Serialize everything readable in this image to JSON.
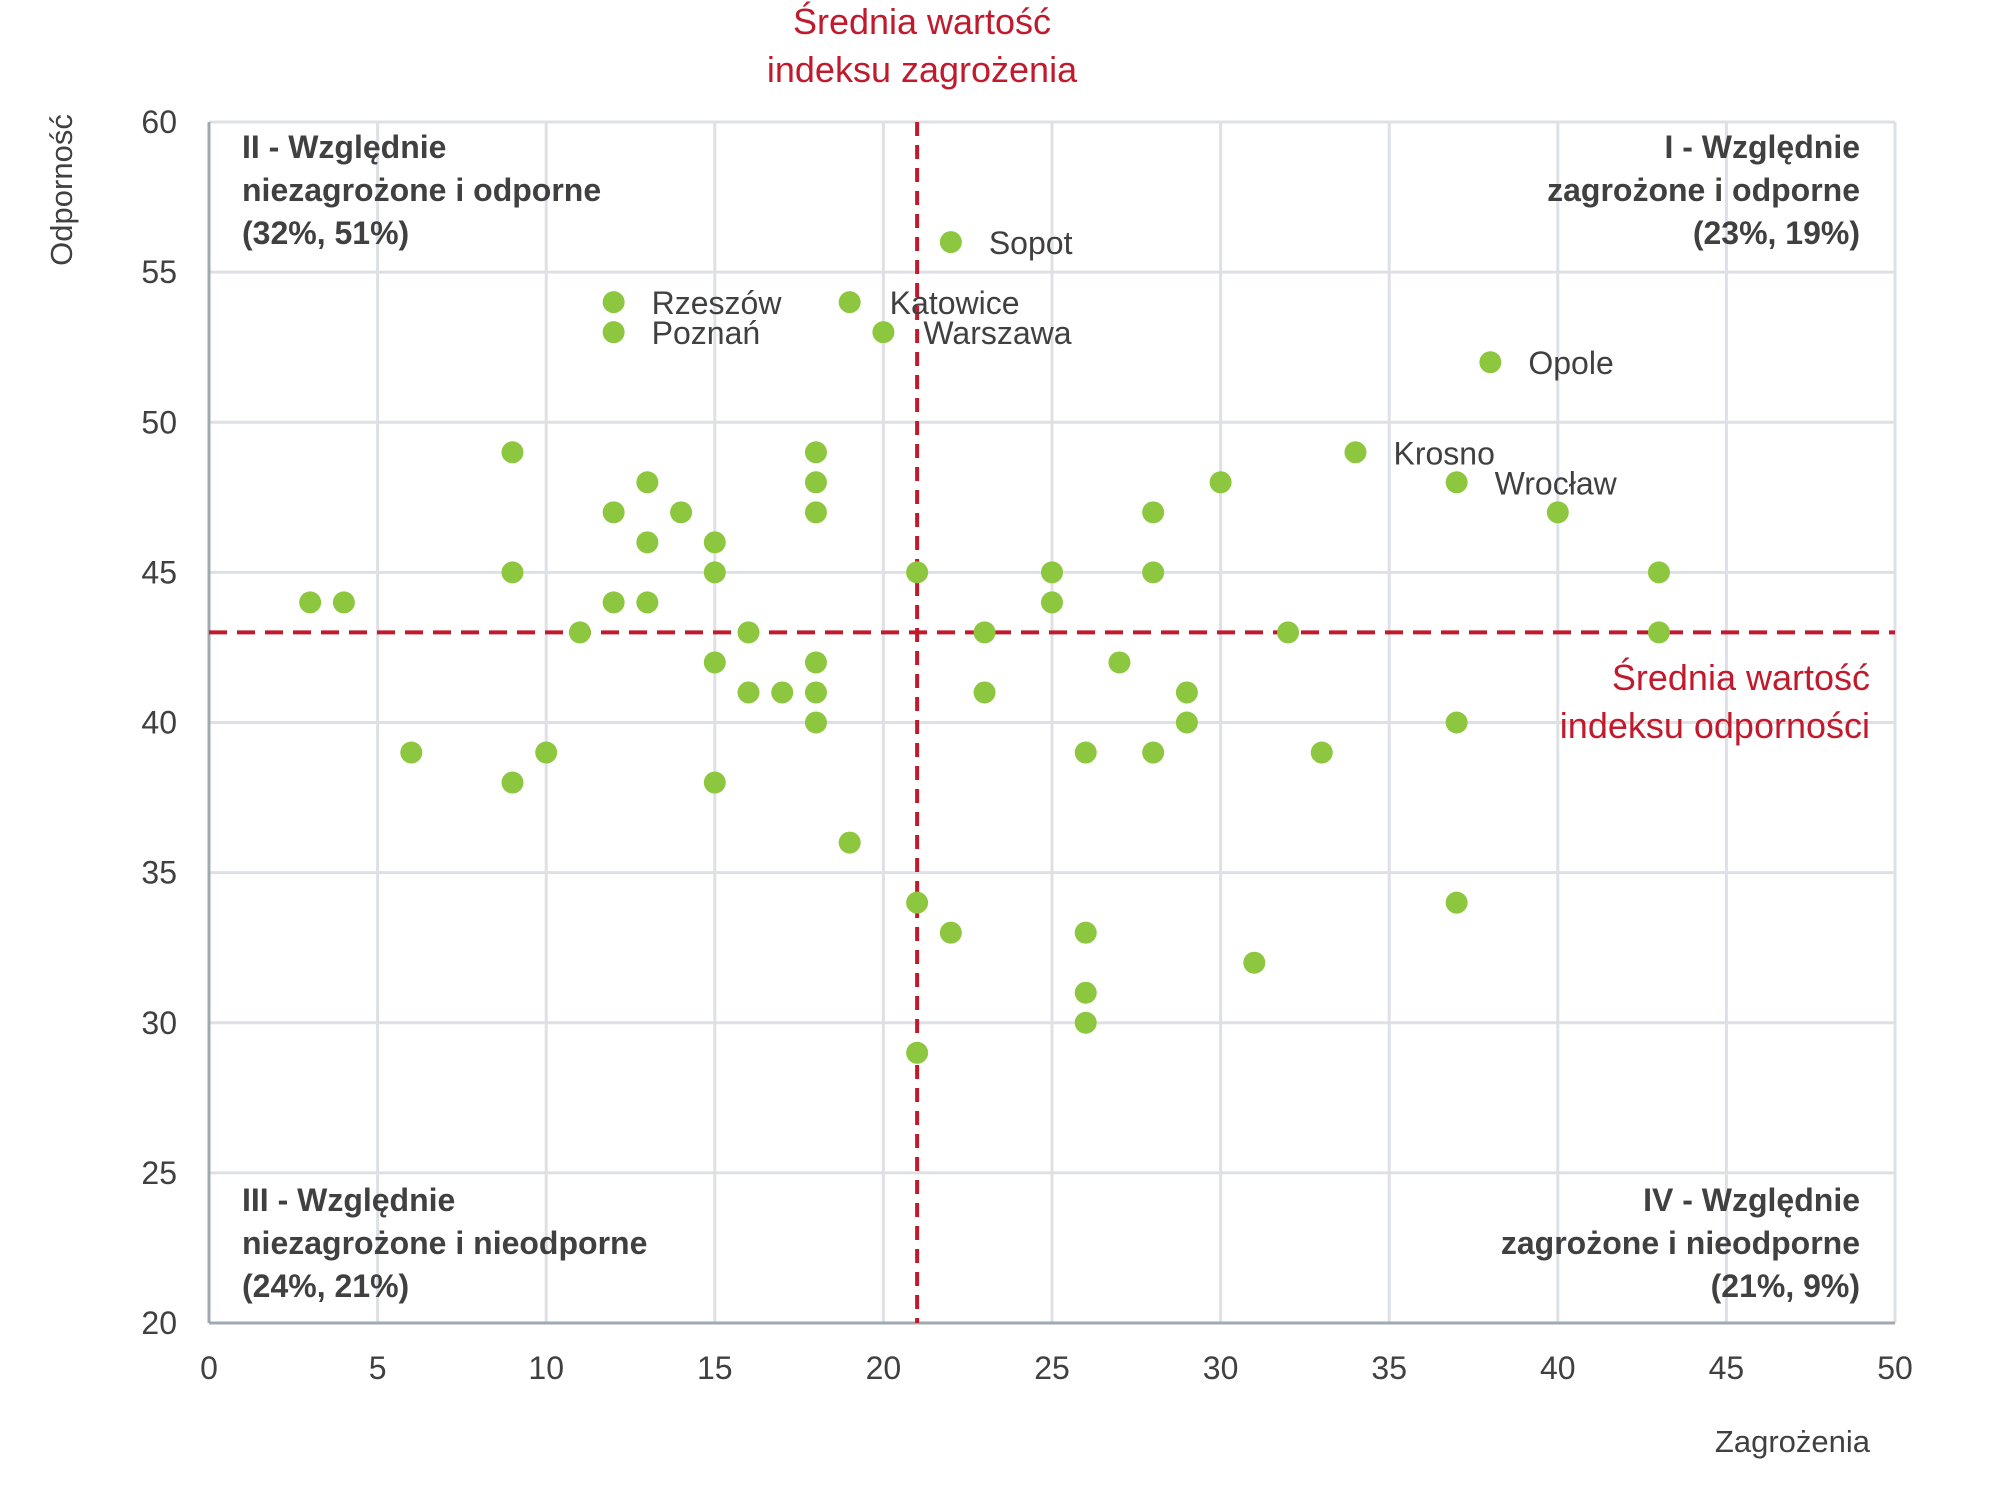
{
  "chart_data": {
    "type": "scatter",
    "xlabel": "Zagrożenia",
    "ylabel": "Odporność",
    "xlim": [
      0,
      50
    ],
    "ylim": [
      20,
      60
    ],
    "xticks": [
      0,
      5,
      10,
      15,
      20,
      25,
      30,
      35,
      40,
      45,
      50
    ],
    "yticks": [
      20,
      25,
      30,
      35,
      40,
      45,
      50,
      55,
      60
    ],
    "grid": true,
    "mean_lines": {
      "x": {
        "value": 21,
        "label": [
          "Średnia wartość",
          "indeksu zagrożenia"
        ]
      },
      "y": {
        "value": 43,
        "label": [
          "Średnia wartość",
          "indeksu odporności"
        ]
      }
    },
    "quadrants": [
      {
        "id": "II",
        "lines": [
          "II - Względnie",
          "niezagrożone i odporne",
          "(32%, 51%)"
        ],
        "position": "top-left"
      },
      {
        "id": "I",
        "lines": [
          "I - Względnie",
          "zagrożone i odporne",
          "(23%, 19%)"
        ],
        "position": "top-right"
      },
      {
        "id": "III",
        "lines": [
          "III - Względnie",
          "niezagrożone i nieodporne",
          "(24%, 21%)"
        ],
        "position": "bottom-left"
      },
      {
        "id": "IV",
        "lines": [
          "IV - Względnie",
          "zagrożone i nieodporne",
          "(21%, 9%)"
        ],
        "position": "bottom-right"
      }
    ],
    "labeled_points": [
      {
        "name": "Sopot",
        "x": 22,
        "y": 56
      },
      {
        "name": "Rzeszów",
        "x": 12,
        "y": 54
      },
      {
        "name": "Katowice",
        "x": 19,
        "y": 54
      },
      {
        "name": "Poznań",
        "x": 12,
        "y": 53
      },
      {
        "name": "Warszawa",
        "x": 20,
        "y": 53
      },
      {
        "name": "Opole",
        "x": 38,
        "y": 52
      },
      {
        "name": "Krosno",
        "x": 34,
        "y": 49
      },
      {
        "name": "Wrocław",
        "x": 37,
        "y": 48
      }
    ],
    "points": [
      [
        9,
        49
      ],
      [
        13,
        48
      ],
      [
        12,
        47
      ],
      [
        14,
        47
      ],
      [
        13,
        46
      ],
      [
        15,
        46
      ],
      [
        18,
        49
      ],
      [
        18,
        48
      ],
      [
        18,
        47
      ],
      [
        9,
        45
      ],
      [
        15,
        45
      ],
      [
        3,
        44
      ],
      [
        4,
        44
      ],
      [
        12,
        44
      ],
      [
        13,
        44
      ],
      [
        11,
        43
      ],
      [
        16,
        43
      ],
      [
        15,
        42
      ],
      [
        16,
        41
      ],
      [
        17,
        41
      ],
      [
        18,
        42
      ],
      [
        18,
        41
      ],
      [
        18,
        40
      ],
      [
        6,
        39
      ],
      [
        10,
        39
      ],
      [
        9,
        38
      ],
      [
        15,
        38
      ],
      [
        19,
        36
      ],
      [
        21,
        45
      ],
      [
        21,
        34
      ],
      [
        22,
        33
      ],
      [
        21,
        29
      ],
      [
        23,
        43
      ],
      [
        23,
        41
      ],
      [
        25,
        45
      ],
      [
        25,
        44
      ],
      [
        28,
        47
      ],
      [
        28,
        45
      ],
      [
        30,
        48
      ],
      [
        27,
        42
      ],
      [
        29,
        41
      ],
      [
        29,
        40
      ],
      [
        26,
        39
      ],
      [
        28,
        39
      ],
      [
        32,
        43
      ],
      [
        33,
        39
      ],
      [
        26,
        33
      ],
      [
        26,
        31
      ],
      [
        26,
        30
      ],
      [
        31,
        32
      ],
      [
        37,
        40
      ],
      [
        37,
        34
      ],
      [
        40,
        47
      ],
      [
        43,
        45
      ],
      [
        43,
        43
      ]
    ],
    "colors": {
      "points": "#8dc63f",
      "mean": "#c01a2c",
      "grid": "#dde1e6",
      "axis": "#a0a8b0"
    }
  }
}
